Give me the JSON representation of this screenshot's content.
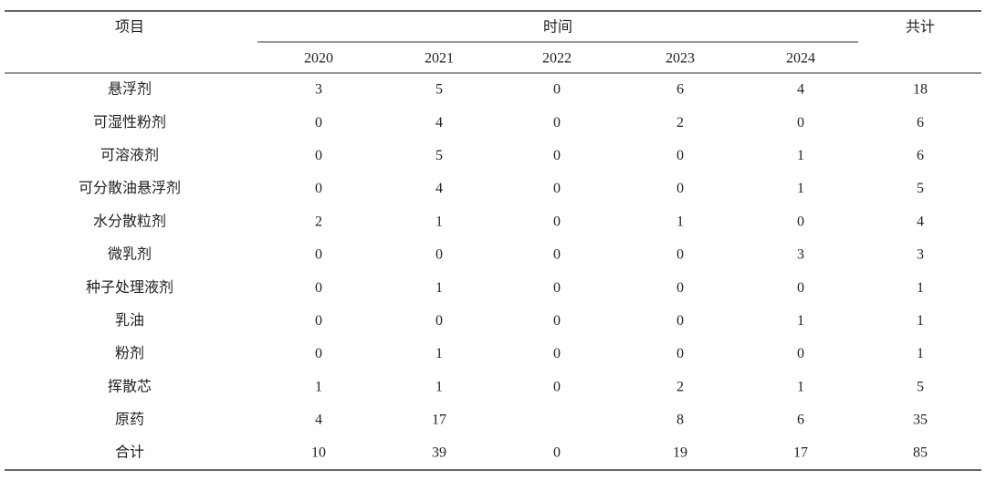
{
  "table": {
    "header": {
      "item": "项目",
      "time": "时间",
      "total": "共计",
      "years": [
        "2020",
        "2021",
        "2022",
        "2023",
        "2024"
      ]
    },
    "rows": [
      [
        "悬浮剂",
        3,
        5,
        0,
        6,
        4,
        18
      ],
      [
        "可湿性粉剂",
        0,
        4,
        0,
        2,
        0,
        6
      ],
      [
        "可溶液剂",
        0,
        5,
        0,
        0,
        1,
        6
      ],
      [
        "可分散油悬浮剂",
        0,
        4,
        0,
        0,
        1,
        5
      ],
      [
        "水分散粒剂",
        2,
        1,
        0,
        1,
        0,
        4
      ],
      [
        "微乳剂",
        0,
        0,
        0,
        0,
        3,
        3
      ],
      [
        "种子处理液剂",
        0,
        1,
        0,
        0,
        0,
        1
      ],
      [
        "乳油",
        0,
        0,
        0,
        0,
        1,
        1
      ],
      [
        "粉剂",
        0,
        1,
        0,
        0,
        0,
        1
      ],
      [
        "挥散芯",
        1,
        1,
        0,
        2,
        1,
        5
      ],
      [
        "原药",
        4,
        17,
        null,
        8,
        6,
        35
      ],
      [
        "合计",
        10,
        39,
        0,
        19,
        17,
        85
      ]
    ]
  }
}
